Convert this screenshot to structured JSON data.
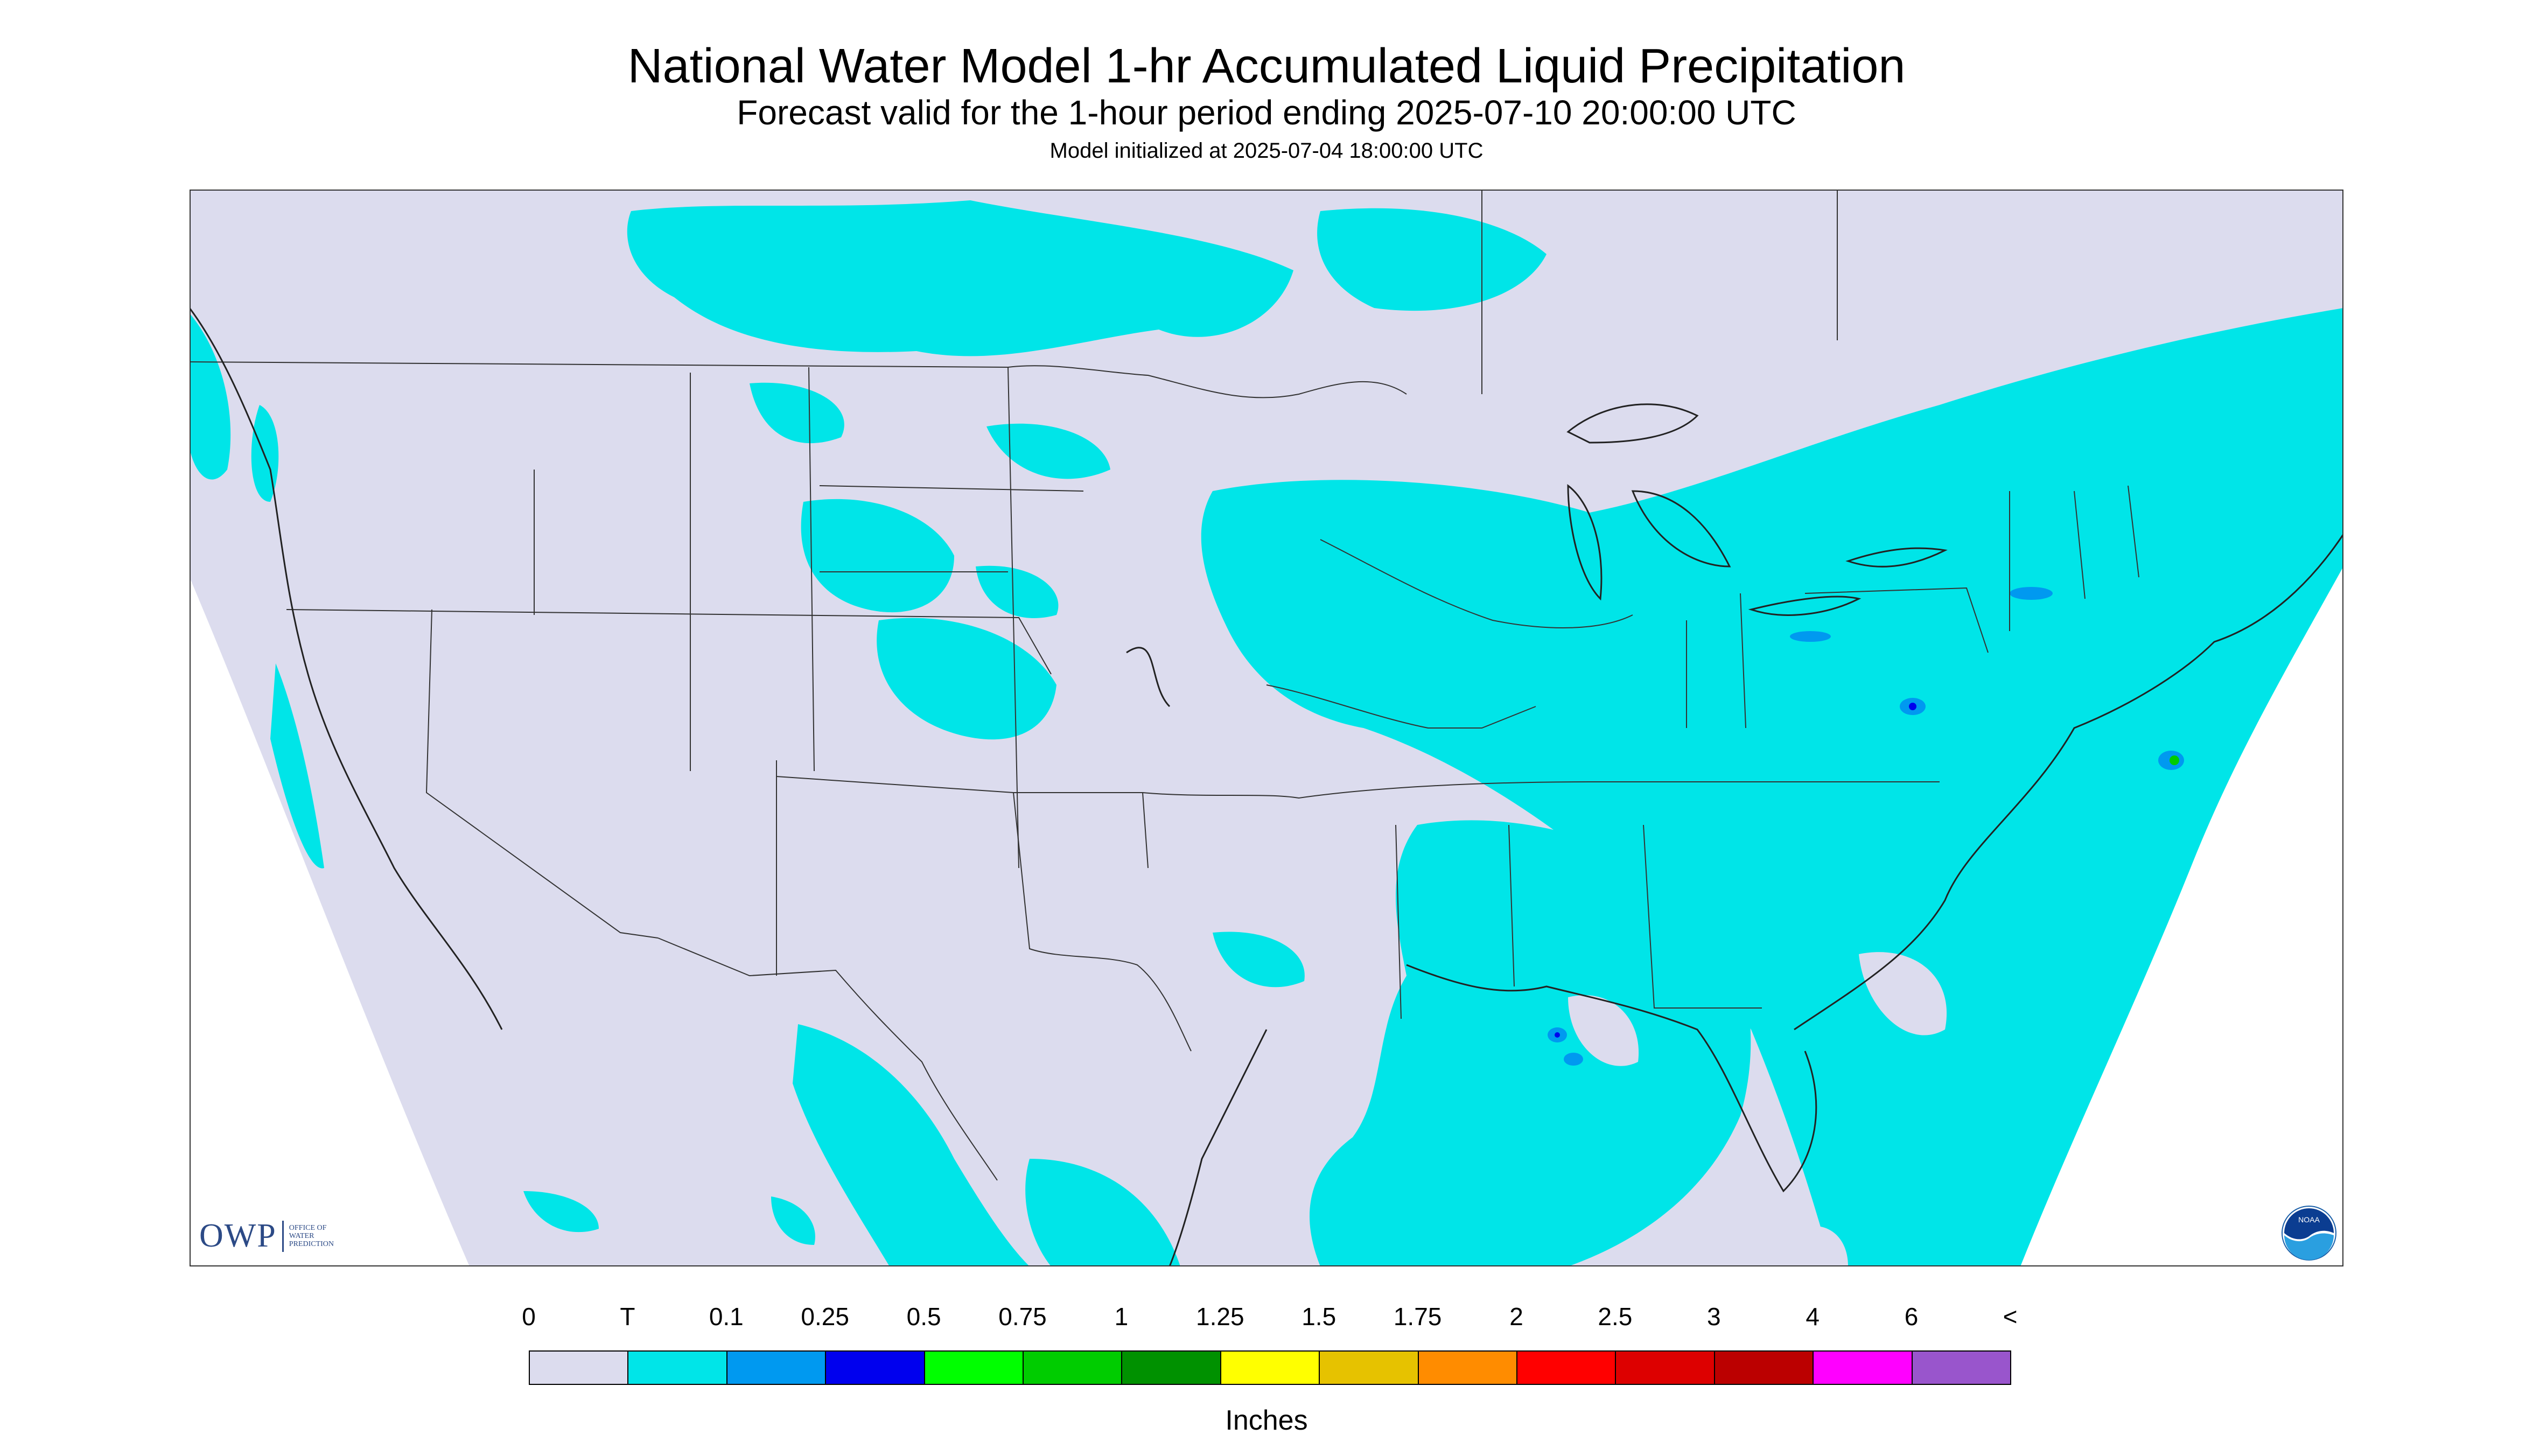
{
  "title": "National Water Model 1-hr Accumulated Liquid Precipitation",
  "subtitle": "Forecast valid for the 1-hour period ending 2025-07-10 20:00:00 UTC",
  "init_line": "Model initialized at 2025-07-04 18:00:00 UTC",
  "logo": {
    "owp": "OWP",
    "owp_text": [
      "OFFICE OF",
      "WATER",
      "PREDICTION"
    ],
    "noaa": "NOAA"
  },
  "colors": {
    "background": "#dcdcee",
    "trace": "#00e5e8",
    "outline": "#333333"
  },
  "legend": {
    "units": "Inches",
    "labels": [
      "0",
      "T",
      "0.1",
      "0.25",
      "0.5",
      "0.75",
      "1",
      "1.25",
      "1.5",
      "1.75",
      "2",
      "2.5",
      "3",
      "4",
      "6",
      "<"
    ],
    "colors": [
      "#dcdcee",
      "#00e5e8",
      "#0099f0",
      "#0000ee",
      "#00ff00",
      "#00cc00",
      "#009100",
      "#ffff00",
      "#e6c200",
      "#ff8c00",
      "#ff0000",
      "#dd0000",
      "#bb0000",
      "#ff00ff",
      "#9955cc"
    ]
  }
}
